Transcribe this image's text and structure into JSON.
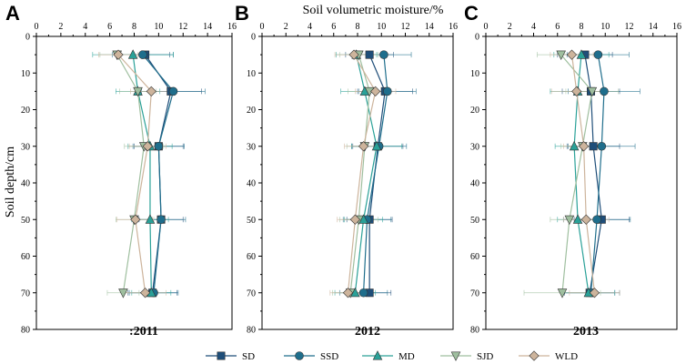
{
  "colors": {
    "SD": "#1f4e79",
    "SSD": "#1f6e8c",
    "MD": "#2aa198",
    "SJD": "#9fbf9f",
    "WLD": "#cdb49c"
  },
  "markers": {
    "SD": "square",
    "SSD": "circle",
    "MD": "triangle",
    "SJD": "triangle-down",
    "WLD": "diamond"
  },
  "chart_data": [
    {
      "type": "line",
      "panel": "A",
      "year_label": ":2011",
      "x_title": "",
      "y_title": "Soil depth/cm",
      "xlim": [
        0,
        16
      ],
      "ylim": [
        0,
        80
      ],
      "xticks": [
        "0",
        "2",
        "4",
        "6",
        "8",
        "10",
        "12",
        "14",
        "16"
      ],
      "yticks": [
        "0",
        "10",
        "20",
        "30",
        "40",
        "50",
        "60",
        "70",
        "80"
      ],
      "depths": [
        5,
        15,
        30,
        50,
        70
      ],
      "series": [
        {
          "name": "SD",
          "values": [
            8.9,
            11.0,
            10.0,
            10.2,
            9.5
          ],
          "errors": [
            2.0,
            2.5,
            2.0,
            1.8,
            2.0
          ]
        },
        {
          "name": "SSD",
          "values": [
            8.7,
            11.2,
            10.0,
            10.2,
            9.6
          ],
          "errors": [
            2.5,
            2.6,
            2.1,
            2.0,
            2.0
          ]
        },
        {
          "name": "MD",
          "values": [
            7.9,
            8.3,
            9.3,
            9.3,
            9.4
          ],
          "errors": [
            3.3,
            1.8,
            1.8,
            1.5,
            1.6
          ]
        },
        {
          "name": "SJD",
          "values": [
            6.6,
            8.3,
            8.8,
            8.0,
            7.1
          ],
          "errors": [
            1.4,
            1.5,
            1.6,
            1.5,
            1.3
          ]
        },
        {
          "name": "WLD",
          "values": [
            6.7,
            9.4,
            9.1,
            8.1,
            8.9
          ],
          "errors": [
            1.6,
            1.7,
            1.5,
            1.5,
            1.7
          ]
        }
      ]
    },
    {
      "type": "line",
      "panel": "B",
      "year_label": "2012",
      "x_title": "Soil volumetric moisture/%",
      "y_title": "",
      "xlim": [
        0,
        16
      ],
      "ylim": [
        0,
        80
      ],
      "xticks": [
        "0",
        "2",
        "4",
        "6",
        "8",
        "10",
        "12",
        "14",
        "16"
      ],
      "yticks": [
        "0",
        "10",
        "20",
        "30",
        "40",
        "50",
        "60",
        "70",
        "80"
      ],
      "depths": [
        5,
        15,
        30,
        50,
        70
      ],
      "series": [
        {
          "name": "SD",
          "values": [
            9.0,
            10.3,
            9.7,
            9.0,
            9.0
          ],
          "errors": [
            2.0,
            2.3,
            2.1,
            1.9,
            1.8
          ]
        },
        {
          "name": "SSD",
          "values": [
            10.2,
            10.5,
            9.8,
            8.8,
            8.5
          ],
          "errors": [
            2.3,
            2.4,
            2.3,
            2.0,
            2.0
          ]
        },
        {
          "name": "MD",
          "values": [
            7.9,
            8.6,
            9.6,
            8.5,
            7.8
          ],
          "errors": [
            1.7,
            2.0,
            2.1,
            1.6,
            1.7
          ]
        },
        {
          "name": "SJD",
          "values": [
            8.1,
            9.0,
            8.6,
            8.1,
            7.4
          ],
          "errors": [
            1.6,
            1.8,
            1.5,
            1.6,
            1.5
          ]
        },
        {
          "name": "WLD",
          "values": [
            7.7,
            9.5,
            8.5,
            7.8,
            7.2
          ],
          "errors": [
            1.6,
            1.7,
            1.6,
            1.5,
            1.5
          ]
        }
      ]
    },
    {
      "type": "line",
      "panel": "C",
      "year_label": "2013",
      "x_title": "",
      "y_title": "",
      "xlim": [
        0,
        16
      ],
      "ylim": [
        0,
        80
      ],
      "xticks": [
        "0",
        "2",
        "4",
        "6",
        "8",
        "10",
        "12",
        "14",
        "16"
      ],
      "yticks": [
        "0",
        "10",
        "20",
        "30",
        "40",
        "50",
        "60",
        "70",
        "80"
      ],
      "depths": [
        5,
        15,
        30,
        50,
        70
      ],
      "series": [
        {
          "name": "SD",
          "values": [
            8.3,
            8.8,
            9.0,
            9.7,
            8.7
          ],
          "errors": [
            2.3,
            2.4,
            2.2,
            2.3,
            2.1
          ]
        },
        {
          "name": "SSD",
          "values": [
            9.4,
            9.9,
            9.7,
            9.3,
            8.8
          ],
          "errors": [
            2.6,
            3.0,
            2.8,
            2.8,
            2.4
          ]
        },
        {
          "name": "MD",
          "values": [
            8.0,
            7.7,
            7.4,
            7.7,
            8.6
          ],
          "errors": [
            2.3,
            2.3,
            1.6,
            1.7,
            2.2
          ]
        },
        {
          "name": "SJD",
          "values": [
            6.3,
            8.9,
            8.1,
            7.0,
            6.4
          ],
          "errors": [
            2.0,
            2.2,
            1.8,
            1.6,
            3.2
          ]
        },
        {
          "name": "WLD",
          "values": [
            7.2,
            7.6,
            8.2,
            8.4,
            9.1
          ],
          "errors": [
            1.8,
            2.1,
            1.7,
            1.9,
            2.1
          ]
        }
      ]
    }
  ],
  "legend": [
    "SD",
    "SSD",
    "MD",
    "SJD",
    "WLD"
  ]
}
